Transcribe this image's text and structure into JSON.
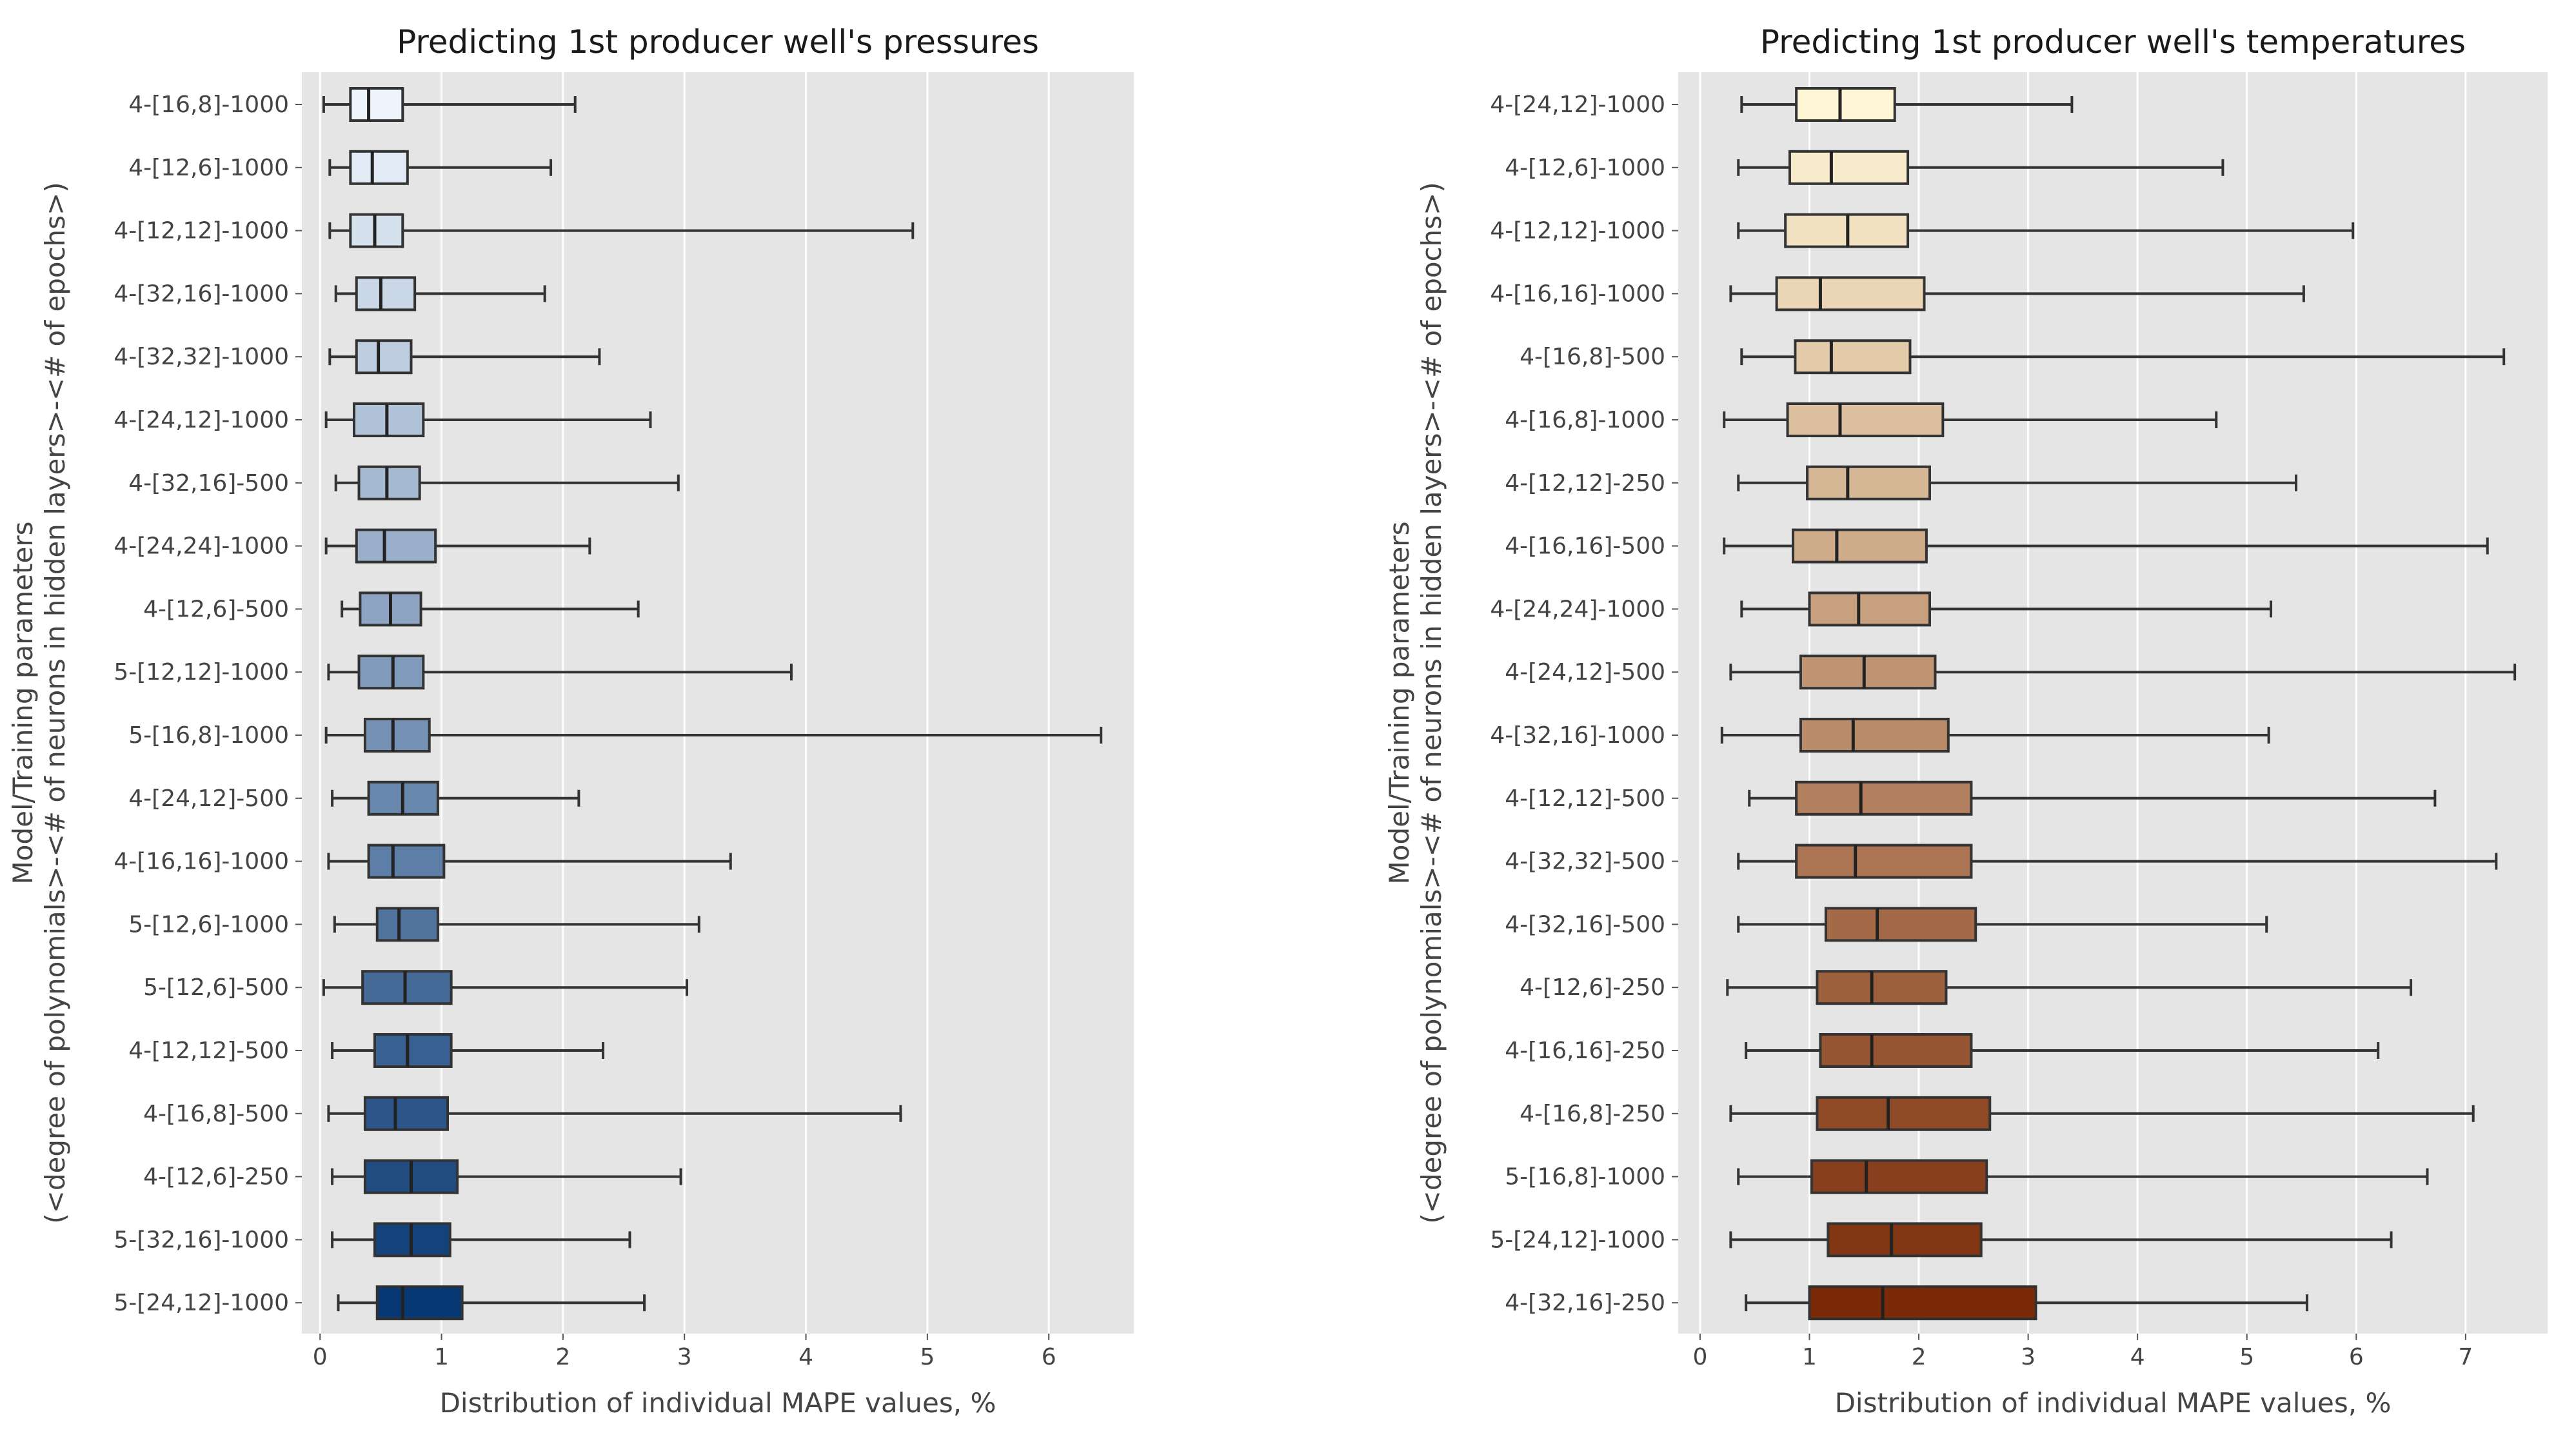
{
  "chart_data": [
    {
      "type": "boxplot",
      "title": "Predicting 1st producer well's pressures",
      "xlabel": "Distribution of individual MAPE values, %",
      "ylabel_lines": [
        "Model/Training parameters",
        "(<degree of polynomials>-<# of neurons in hidden layers>-<# of epochs>)"
      ],
      "xlim": [
        -0.15,
        6.7
      ],
      "xticks": [
        0,
        1,
        2,
        3,
        4,
        5,
        6
      ],
      "grid": true,
      "colormap": [
        "#eef5fc",
        "#083874"
      ],
      "categories": [
        "4-[16,8]-1000",
        "4-[12,6]-1000",
        "4-[12,12]-1000",
        "4-[32,16]-1000",
        "4-[32,32]-1000",
        "4-[24,12]-1000",
        "4-[32,16]-500",
        "4-[24,24]-1000",
        "4-[12,6]-500",
        "5-[12,12]-1000",
        "5-[16,8]-1000",
        "4-[24,12]-500",
        "4-[16,16]-1000",
        "5-[12,6]-1000",
        "5-[12,6]-500",
        "4-[12,12]-500",
        "4-[16,8]-500",
        "4-[12,6]-250",
        "5-[32,16]-1000",
        "5-[24,12]-1000"
      ],
      "boxes": [
        {
          "min": 0.03,
          "q1": 0.25,
          "median": 0.4,
          "q3": 0.68,
          "max": 2.1
        },
        {
          "min": 0.08,
          "q1": 0.25,
          "median": 0.43,
          "q3": 0.72,
          "max": 1.9
        },
        {
          "min": 0.08,
          "q1": 0.25,
          "median": 0.45,
          "q3": 0.68,
          "max": 4.88
        },
        {
          "min": 0.13,
          "q1": 0.3,
          "median": 0.5,
          "q3": 0.78,
          "max": 1.85
        },
        {
          "min": 0.08,
          "q1": 0.3,
          "median": 0.48,
          "q3": 0.75,
          "max": 2.3
        },
        {
          "min": 0.05,
          "q1": 0.28,
          "median": 0.55,
          "q3": 0.85,
          "max": 2.72
        },
        {
          "min": 0.13,
          "q1": 0.32,
          "median": 0.55,
          "q3": 0.82,
          "max": 2.95
        },
        {
          "min": 0.05,
          "q1": 0.3,
          "median": 0.53,
          "q3": 0.95,
          "max": 2.22
        },
        {
          "min": 0.18,
          "q1": 0.33,
          "median": 0.58,
          "q3": 0.83,
          "max": 2.62
        },
        {
          "min": 0.07,
          "q1": 0.32,
          "median": 0.6,
          "q3": 0.85,
          "max": 3.88
        },
        {
          "min": 0.05,
          "q1": 0.37,
          "median": 0.6,
          "q3": 0.9,
          "max": 6.43
        },
        {
          "min": 0.1,
          "q1": 0.4,
          "median": 0.68,
          "q3": 0.97,
          "max": 2.13
        },
        {
          "min": 0.07,
          "q1": 0.4,
          "median": 0.6,
          "q3": 1.02,
          "max": 3.38
        },
        {
          "min": 0.12,
          "q1": 0.47,
          "median": 0.65,
          "q3": 0.97,
          "max": 3.12
        },
        {
          "min": 0.03,
          "q1": 0.35,
          "median": 0.7,
          "q3": 1.08,
          "max": 3.02
        },
        {
          "min": 0.1,
          "q1": 0.45,
          "median": 0.72,
          "q3": 1.08,
          "max": 2.33
        },
        {
          "min": 0.07,
          "q1": 0.37,
          "median": 0.62,
          "q3": 1.05,
          "max": 4.78
        },
        {
          "min": 0.1,
          "q1": 0.37,
          "median": 0.75,
          "q3": 1.13,
          "max": 2.97
        },
        {
          "min": 0.1,
          "q1": 0.45,
          "median": 0.75,
          "q3": 1.07,
          "max": 2.55
        },
        {
          "min": 0.15,
          "q1": 0.47,
          "median": 0.68,
          "q3": 1.17,
          "max": 2.67
        }
      ]
    },
    {
      "type": "boxplot",
      "title": "Predicting 1st producer well's temperatures",
      "xlabel": "Distribution of individual MAPE values, %",
      "ylabel_lines": [
        "Model/Training parameters",
        "(<degree of polynomials>-<# of neurons in hidden layers>-<# of epochs>)"
      ],
      "xlim": [
        -0.2,
        7.75
      ],
      "xticks": [
        0,
        1,
        2,
        3,
        4,
        5,
        6,
        7
      ],
      "grid": true,
      "colormap": [
        "#fff6d6",
        "#7a2a07"
      ],
      "categories": [
        "4-[24,12]-1000",
        "4-[12,6]-1000",
        "4-[12,12]-1000",
        "4-[16,16]-1000",
        "4-[16,8]-500",
        "4-[16,8]-1000",
        "4-[12,12]-250",
        "4-[16,16]-500",
        "4-[24,24]-1000",
        "4-[24,12]-500",
        "4-[32,16]-1000",
        "4-[12,12]-500",
        "4-[32,32]-500",
        "4-[32,16]-500",
        "4-[12,6]-250",
        "4-[16,16]-250",
        "4-[16,8]-250",
        "5-[16,8]-1000",
        "5-[24,12]-1000",
        "4-[32,16]-250"
      ],
      "boxes": [
        {
          "min": 0.38,
          "q1": 0.88,
          "median": 1.28,
          "q3": 1.78,
          "max": 3.4
        },
        {
          "min": 0.35,
          "q1": 0.82,
          "median": 1.2,
          "q3": 1.9,
          "max": 4.78
        },
        {
          "min": 0.35,
          "q1": 0.78,
          "median": 1.35,
          "q3": 1.9,
          "max": 5.97
        },
        {
          "min": 0.28,
          "q1": 0.7,
          "median": 1.1,
          "q3": 2.05,
          "max": 5.52
        },
        {
          "min": 0.38,
          "q1": 0.87,
          "median": 1.2,
          "q3": 1.92,
          "max": 7.35
        },
        {
          "min": 0.22,
          "q1": 0.8,
          "median": 1.28,
          "q3": 2.22,
          "max": 4.72
        },
        {
          "min": 0.35,
          "q1": 0.98,
          "median": 1.35,
          "q3": 2.1,
          "max": 5.45
        },
        {
          "min": 0.22,
          "q1": 0.85,
          "median": 1.25,
          "q3": 2.07,
          "max": 7.2
        },
        {
          "min": 0.38,
          "q1": 1.0,
          "median": 1.45,
          "q3": 2.1,
          "max": 5.22
        },
        {
          "min": 0.28,
          "q1": 0.92,
          "median": 1.5,
          "q3": 2.15,
          "max": 7.45
        },
        {
          "min": 0.2,
          "q1": 0.92,
          "median": 1.4,
          "q3": 2.27,
          "max": 5.2
        },
        {
          "min": 0.45,
          "q1": 0.88,
          "median": 1.47,
          "q3": 2.48,
          "max": 6.72
        },
        {
          "min": 0.35,
          "q1": 0.88,
          "median": 1.42,
          "q3": 2.48,
          "max": 7.28
        },
        {
          "min": 0.35,
          "q1": 1.15,
          "median": 1.62,
          "q3": 2.52,
          "max": 5.18
        },
        {
          "min": 0.25,
          "q1": 1.07,
          "median": 1.57,
          "q3": 2.25,
          "max": 6.5
        },
        {
          "min": 0.42,
          "q1": 1.1,
          "median": 1.57,
          "q3": 2.48,
          "max": 6.2
        },
        {
          "min": 0.28,
          "q1": 1.07,
          "median": 1.72,
          "q3": 2.65,
          "max": 7.07
        },
        {
          "min": 0.35,
          "q1": 1.02,
          "median": 1.52,
          "q3": 2.62,
          "max": 6.65
        },
        {
          "min": 0.28,
          "q1": 1.17,
          "median": 1.75,
          "q3": 2.57,
          "max": 6.32
        },
        {
          "min": 0.42,
          "q1": 1.0,
          "median": 1.67,
          "q3": 3.07,
          "max": 5.55
        }
      ]
    }
  ]
}
